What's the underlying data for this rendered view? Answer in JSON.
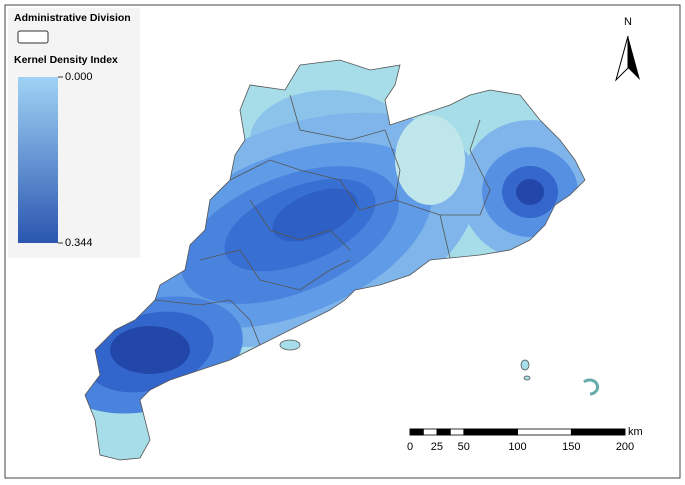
{
  "legend": {
    "division_title": "Administrative Division",
    "density_title": "Kernel Density Index",
    "min_label": "0.000",
    "max_label": "0.344"
  },
  "north_label": "N",
  "scale_bar": {
    "unit": "km",
    "labels": [
      "0",
      "25",
      "50",
      "100",
      "150",
      "200"
    ]
  }
}
